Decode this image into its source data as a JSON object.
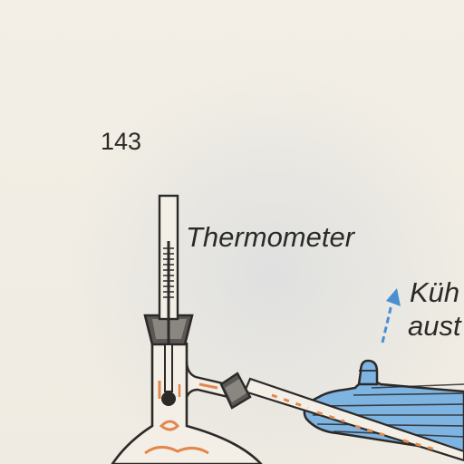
{
  "page": {
    "number": "143"
  },
  "labels": {
    "thermometer": "Thermometer",
    "coolant_out_line1": "Küh",
    "coolant_out_line2": "aust"
  },
  "colors": {
    "paper": "#f1ede4",
    "ink": "#2c2a28",
    "condenser_blue": "#6aa6d8",
    "coolant_arrow": "#4a90d0",
    "vapor_orange": "#e2874e"
  }
}
